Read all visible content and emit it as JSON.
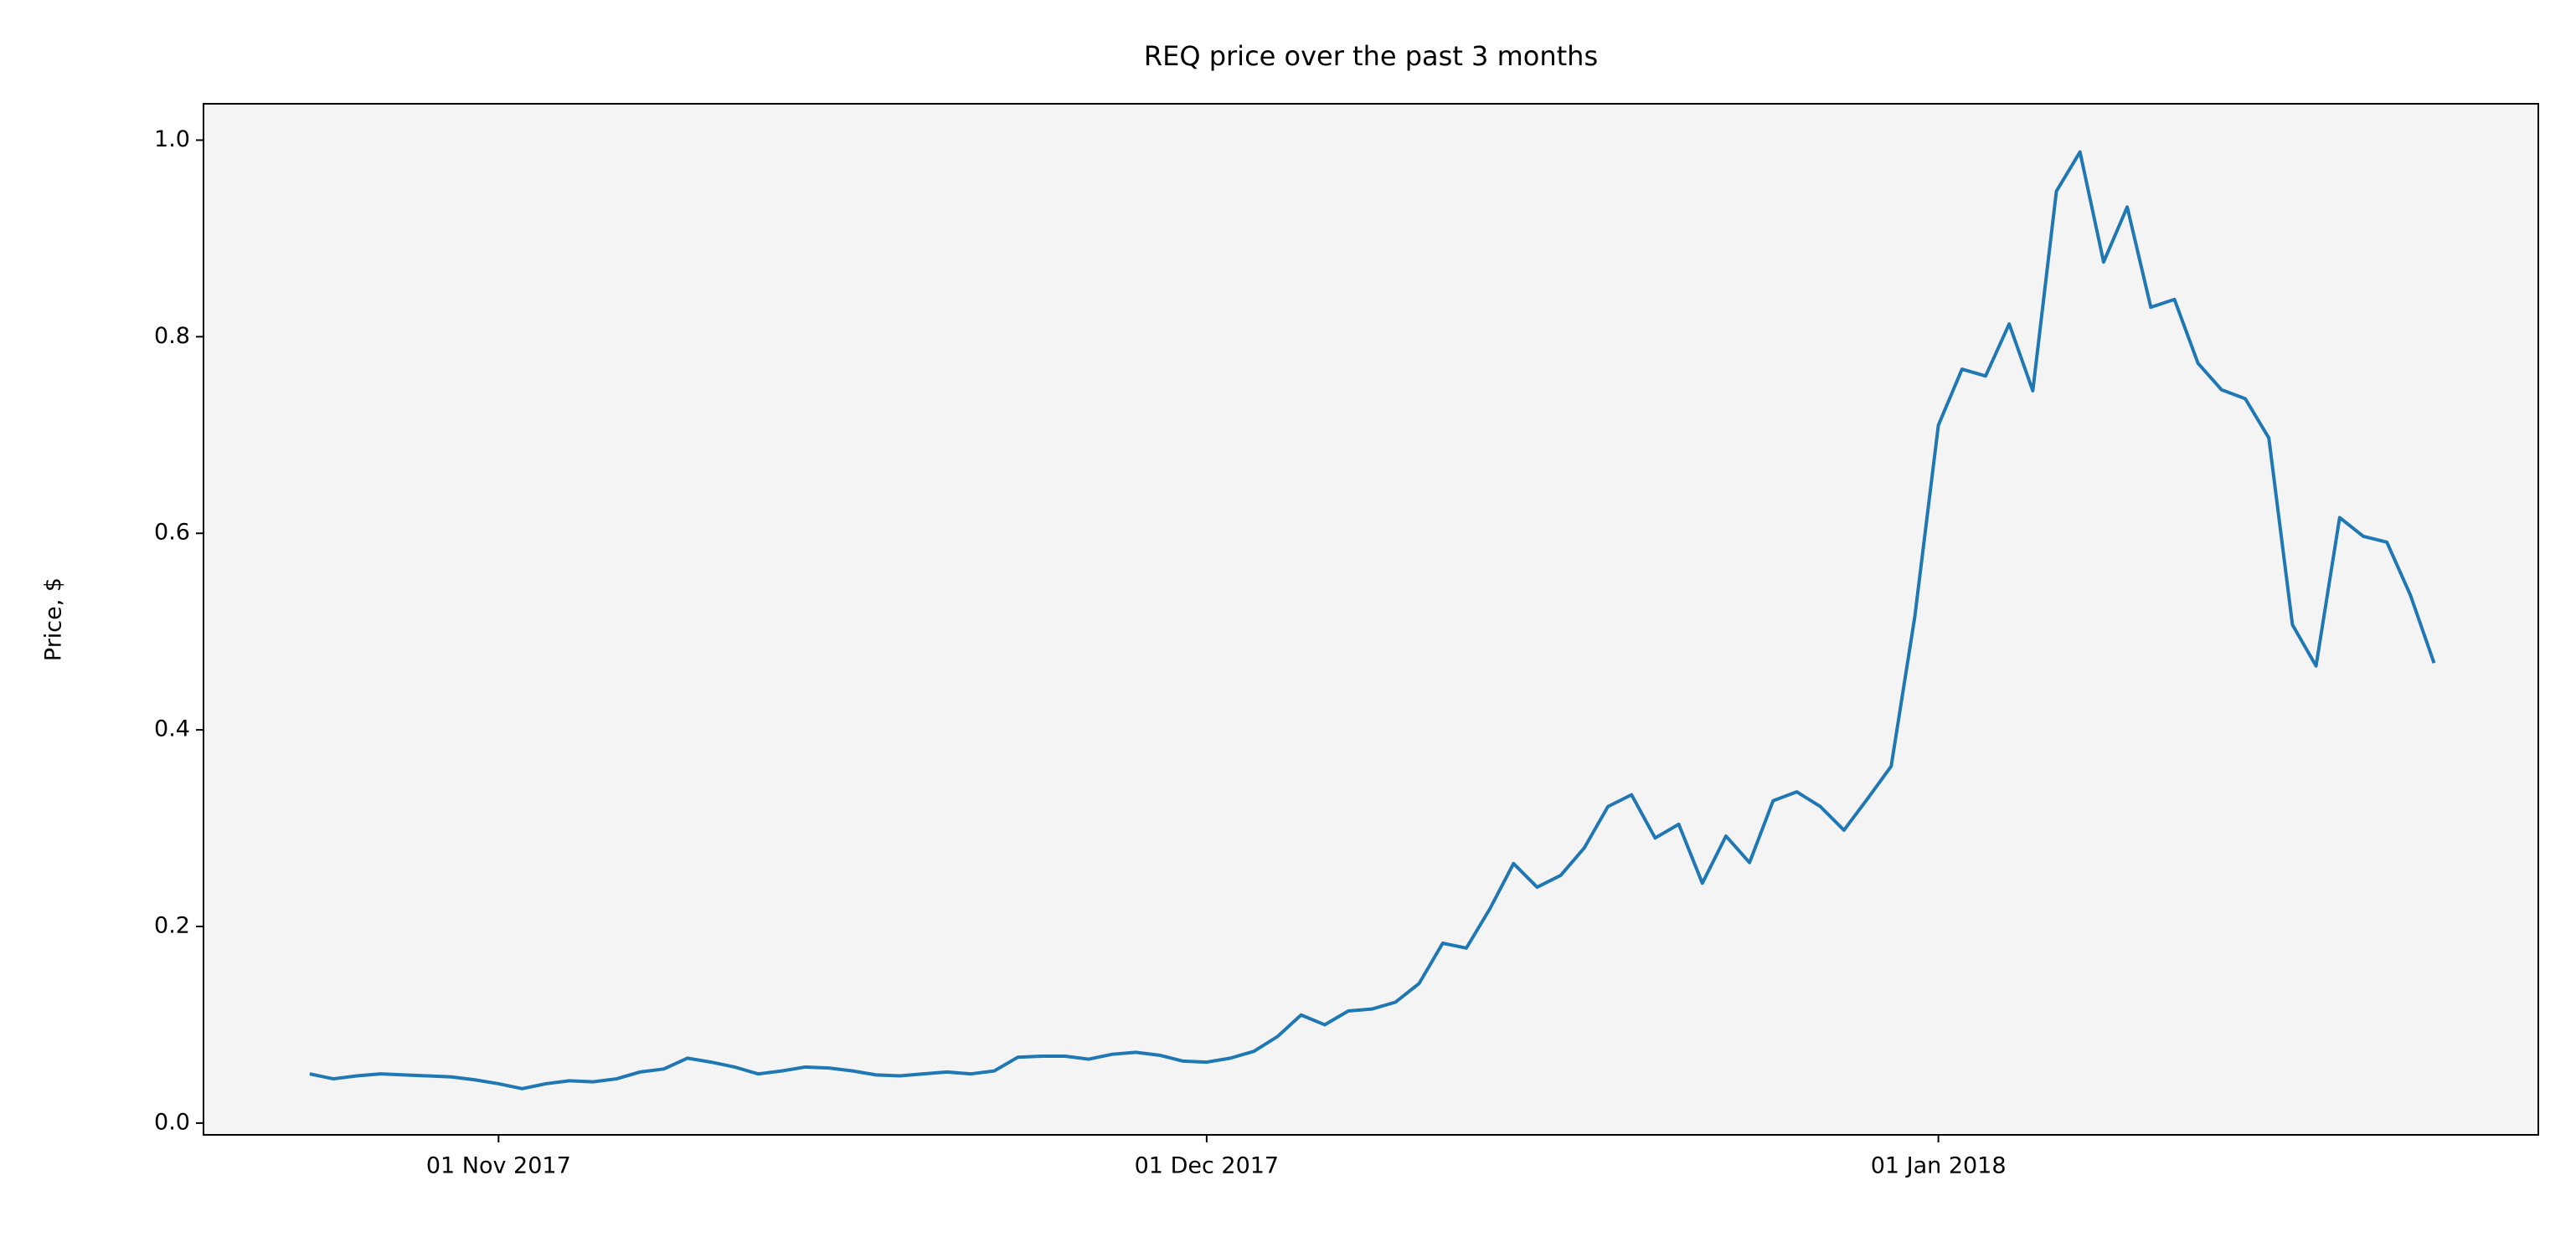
{
  "chart_data": {
    "type": "line",
    "title": "REQ price over the past 3 months",
    "ylabel": "Price, $",
    "x": [
      "2017-10-24",
      "2017-10-25",
      "2017-10-26",
      "2017-10-27",
      "2017-10-28",
      "2017-10-29",
      "2017-10-30",
      "2017-10-31",
      "2017-11-01",
      "2017-11-02",
      "2017-11-03",
      "2017-11-04",
      "2017-11-05",
      "2017-11-06",
      "2017-11-07",
      "2017-11-08",
      "2017-11-09",
      "2017-11-10",
      "2017-11-11",
      "2017-11-12",
      "2017-11-13",
      "2017-11-14",
      "2017-11-15",
      "2017-11-16",
      "2017-11-17",
      "2017-11-18",
      "2017-11-19",
      "2017-11-20",
      "2017-11-21",
      "2017-11-22",
      "2017-11-23",
      "2017-11-24",
      "2017-11-25",
      "2017-11-26",
      "2017-11-27",
      "2017-11-28",
      "2017-11-29",
      "2017-11-30",
      "2017-12-01",
      "2017-12-02",
      "2017-12-03",
      "2017-12-04",
      "2017-12-05",
      "2017-12-06",
      "2017-12-07",
      "2017-12-08",
      "2017-12-09",
      "2017-12-10",
      "2017-12-11",
      "2017-12-12",
      "2017-12-13",
      "2017-12-14",
      "2017-12-15",
      "2017-12-16",
      "2017-12-17",
      "2017-12-18",
      "2017-12-19",
      "2017-12-20",
      "2017-12-21",
      "2017-12-22",
      "2017-12-23",
      "2017-12-24",
      "2017-12-25",
      "2017-12-26",
      "2017-12-27",
      "2017-12-28",
      "2017-12-29",
      "2017-12-30",
      "2017-12-31",
      "2018-01-01",
      "2018-01-02",
      "2018-01-03",
      "2018-01-04",
      "2018-01-05",
      "2018-01-06",
      "2018-01-07",
      "2018-01-08",
      "2018-01-09",
      "2018-01-10",
      "2018-01-11",
      "2018-01-12",
      "2018-01-13",
      "2018-01-14",
      "2018-01-15",
      "2018-01-16",
      "2018-01-17",
      "2018-01-18",
      "2018-01-19",
      "2018-01-20",
      "2018-01-21",
      "2018-01-22"
    ],
    "series": [
      {
        "name": "REQ",
        "color": "#1f77b4",
        "values": [
          0.05,
          0.045,
          0.048,
          0.05,
          0.049,
          0.048,
          0.047,
          0.044,
          0.04,
          0.035,
          0.04,
          0.043,
          0.042,
          0.045,
          0.052,
          0.055,
          0.066,
          0.062,
          0.057,
          0.05,
          0.053,
          0.057,
          0.056,
          0.053,
          0.049,
          0.048,
          0.05,
          0.052,
          0.05,
          0.053,
          0.067,
          0.068,
          0.068,
          0.065,
          0.07,
          0.072,
          0.069,
          0.063,
          0.062,
          0.066,
          0.073,
          0.088,
          0.11,
          0.1,
          0.114,
          0.116,
          0.123,
          0.142,
          0.183,
          0.178,
          0.218,
          0.264,
          0.24,
          0.252,
          0.28,
          0.322,
          0.334,
          0.29,
          0.304,
          0.244,
          0.292,
          0.265,
          0.328,
          0.337,
          0.322,
          0.298,
          0.33,
          0.363,
          0.515,
          0.71,
          0.767,
          0.76,
          0.813,
          0.745,
          0.948,
          0.988,
          0.876,
          0.932,
          0.83,
          0.838,
          0.773,
          0.746,
          0.737,
          0.697,
          0.507,
          0.465,
          0.616,
          0.597,
          0.591,
          0.537,
          0.468
        ]
      }
    ],
    "xlim": [
      "2017-10-19T12:00",
      "2018-01-26T10:00"
    ],
    "xticks": [
      {
        "value": "2017-11-01",
        "label": "01 Nov 2017"
      },
      {
        "value": "2017-12-01",
        "label": "01 Dec 2017"
      },
      {
        "value": "2018-01-01",
        "label": "01 Jan 2018"
      }
    ],
    "ylim": [
      -0.012,
      1.037
    ],
    "yticks": [
      {
        "value": 0,
        "label": "0.0"
      },
      0.2,
      0.4,
      0.6,
      0.8,
      {
        "value": 1,
        "label": "1.0"
      }
    ],
    "grid": false,
    "background": "#f4f4f4"
  }
}
